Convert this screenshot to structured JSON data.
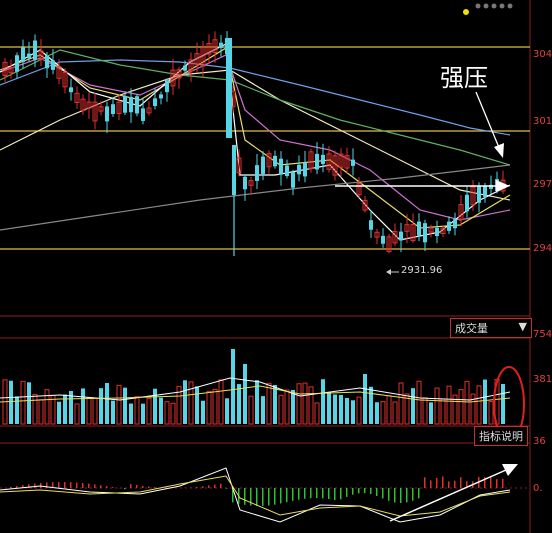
{
  "price_axis_labels": [
    "304",
    "301",
    "297",
    "294"
  ],
  "volume_axis_labels": [
    "754",
    "381"
  ],
  "macd_axis_labels": [
    "36",
    "0."
  ],
  "low_marker": "2931.96",
  "annotation_text": "强压",
  "volume_tab_label": "成交量",
  "indicator_tab_label": "指标说明",
  "colors": {
    "up": "#e03030",
    "down": "#55d5e5",
    "resistance": "#e0c040",
    "ma5": "#ffffff",
    "ma10": "#e8e060",
    "ma20": "#d070d0",
    "ma30": "#60b060",
    "ma60": "#6fa0e0",
    "ma120": "#f0e8c0",
    "grid": "#8a1e1e"
  },
  "icons": [
    "arrow-right-icon",
    "arrow-diagonal-icon",
    "highlight-circle"
  ]
}
